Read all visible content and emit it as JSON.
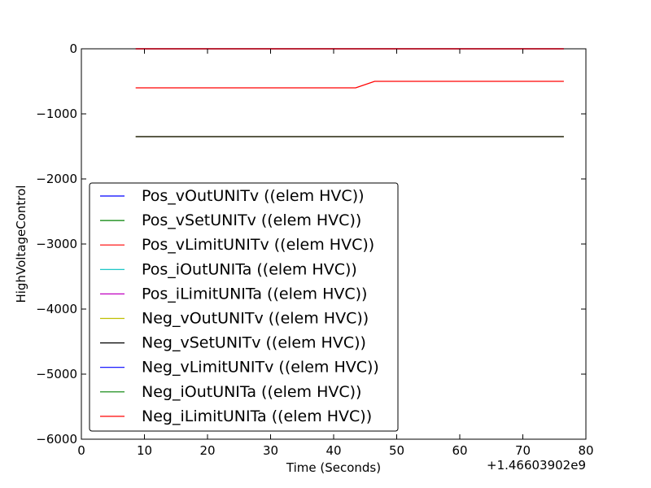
{
  "chart_data": {
    "type": "line",
    "xlabel": "Time (Seconds)",
    "ylabel": "HighVoltageControl",
    "x_offset_label": "+1.46603902e9",
    "xlim": [
      0,
      80
    ],
    "ylim": [
      -6000,
      0
    ],
    "x_ticks": [
      0,
      10,
      20,
      30,
      40,
      50,
      60,
      70,
      80
    ],
    "y_ticks": [
      0,
      -1000,
      -2000,
      -3000,
      -4000,
      -5000,
      -6000
    ],
    "x_tick_labels": [
      "0",
      "10",
      "20",
      "30",
      "40",
      "50",
      "60",
      "70",
      "80"
    ],
    "y_tick_labels": [
      "0",
      "−1000",
      "−2000",
      "−3000",
      "−4000",
      "−5000",
      "−6000"
    ],
    "grid": false,
    "legend_position": "lower-left",
    "series": [
      {
        "name": "Pos_vOutUNITv ((elem HVC))",
        "color": "#0000ff",
        "x": [
          8.6,
          76.5
        ],
        "y": [
          0,
          0
        ]
      },
      {
        "name": "Pos_vSetUNITv ((elem HVC))",
        "color": "#008000",
        "x": [
          8.6,
          76.5
        ],
        "y": [
          0,
          0
        ]
      },
      {
        "name": "Pos_vLimitUNITv ((elem HVC))",
        "color": "#ff0000",
        "x": [
          8.6,
          43.5,
          46.5,
          76.5
        ],
        "y": [
          -600,
          -600,
          -500,
          -500
        ]
      },
      {
        "name": "Pos_iOutUNITa ((elem HVC))",
        "color": "#00bfbf",
        "x": [
          8.6,
          76.5
        ],
        "y": [
          0,
          0
        ]
      },
      {
        "name": "Pos_iLimitUNITa ((elem HVC))",
        "color": "#bf00bf",
        "x": [
          8.6,
          76.5
        ],
        "y": [
          0,
          0
        ]
      },
      {
        "name": "Neg_vOutUNITv ((elem HVC))",
        "color": "#bfbf00",
        "x": [
          8.6,
          76.5
        ],
        "y": [
          -1350,
          -1350
        ]
      },
      {
        "name": "Neg_vSetUNITv ((elem HVC))",
        "color": "#000000",
        "x": [
          8.6,
          76.5
        ],
        "y": [
          -1350,
          -1350
        ]
      },
      {
        "name": "Neg_vLimitUNITv ((elem HVC))",
        "color": "#0000ff",
        "x": [
          8.6,
          76.5
        ],
        "y": [
          0,
          0
        ]
      },
      {
        "name": "Neg_iOutUNITa ((elem HVC))",
        "color": "#008000",
        "x": [
          8.6,
          76.5
        ],
        "y": [
          0,
          0
        ]
      },
      {
        "name": "Neg_iLimitUNITa ((elem HVC))",
        "color": "#ff0000",
        "x": [
          8.6,
          76.5
        ],
        "y": [
          0,
          0
        ]
      }
    ]
  }
}
